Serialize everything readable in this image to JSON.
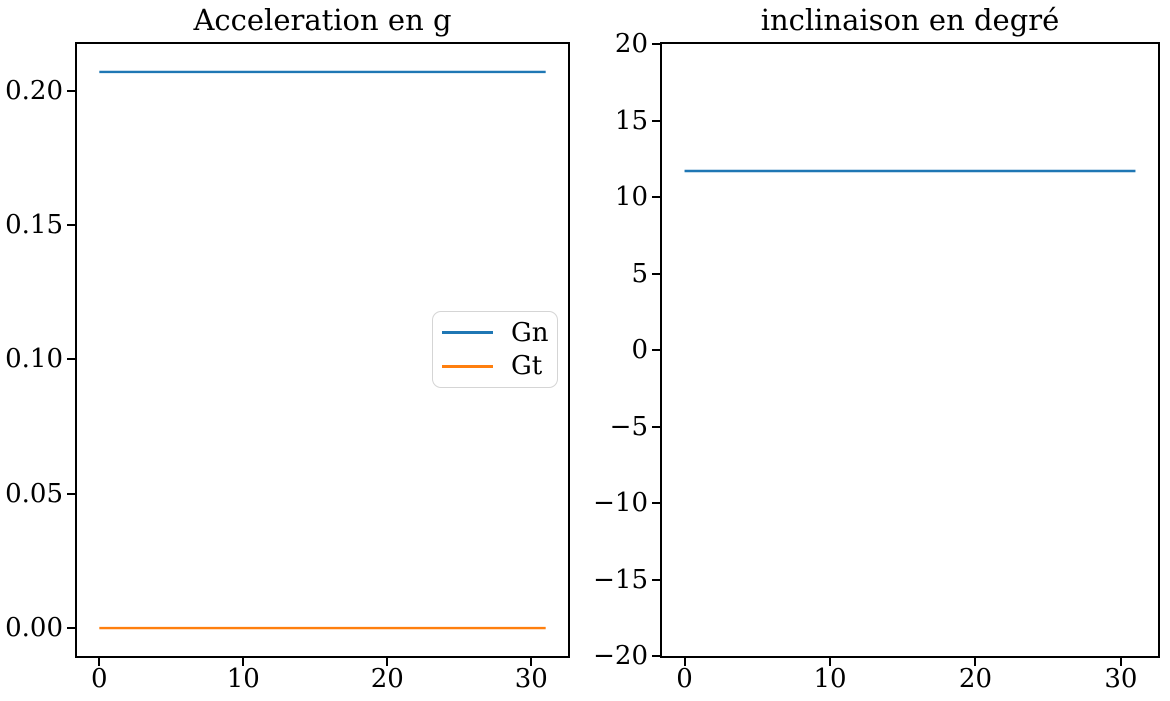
{
  "figure": {
    "background": "#ffffff",
    "text_color": "#000000"
  },
  "colors": {
    "series_blue": "#1f77b4",
    "series_orange": "#ff7f0e",
    "spine": "#000000",
    "legend_border": "#d5d5d5"
  },
  "chart_data": [
    {
      "id": "acceleration",
      "type": "line",
      "title": "Acceleration en g",
      "xlabel": "",
      "ylabel": "",
      "xlim": [
        -1.55,
        32.55
      ],
      "ylim": [
        -0.0104,
        0.2174
      ],
      "xticks": [
        0,
        10,
        20,
        30
      ],
      "xtick_labels": [
        "0",
        "10",
        "20",
        "30"
      ],
      "yticks": [
        0.0,
        0.05,
        0.1,
        0.15,
        0.2
      ],
      "ytick_labels": [
        "0.00",
        "0.05",
        "0.10",
        "0.15",
        "0.20"
      ],
      "grid": false,
      "legend": {
        "visible": true,
        "position": "center right",
        "entries": [
          "Gn",
          "Gt"
        ]
      },
      "series": [
        {
          "name": "Gn",
          "color": "#1f77b4",
          "x": [
            0,
            31
          ],
          "y": [
            0.207,
            0.207
          ]
        },
        {
          "name": "Gt",
          "color": "#ff7f0e",
          "x": [
            0,
            31
          ],
          "y": [
            0.0,
            0.0
          ]
        }
      ]
    },
    {
      "id": "inclinaison",
      "type": "line",
      "title": "inclinaison en degré",
      "xlabel": "",
      "ylabel": "",
      "xlim": [
        -1.55,
        32.55
      ],
      "ylim": [
        -20,
        20
      ],
      "xticks": [
        0,
        10,
        20,
        30
      ],
      "xtick_labels": [
        "0",
        "10",
        "20",
        "30"
      ],
      "yticks": [
        20,
        15,
        10,
        5,
        0,
        -5,
        -10,
        -15,
        -20
      ],
      "ytick_labels": [
        "20",
        "15",
        "10",
        "5",
        "0",
        "−5",
        "−10",
        "−15",
        "−20"
      ],
      "grid": false,
      "legend": {
        "visible": false,
        "entries": []
      },
      "series": [
        {
          "name": "inclinaison",
          "color": "#1f77b4",
          "x": [
            0,
            31
          ],
          "y": [
            11.7,
            11.7
          ]
        }
      ]
    }
  ]
}
